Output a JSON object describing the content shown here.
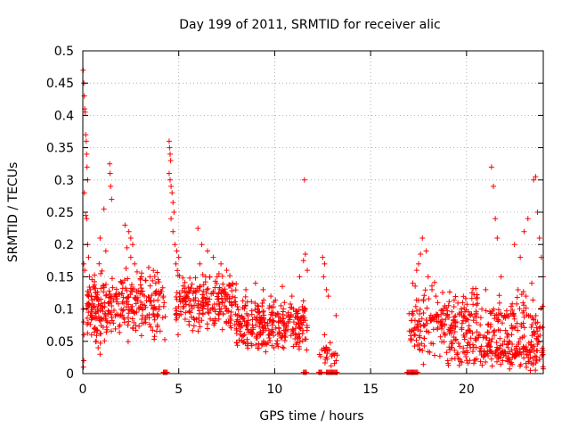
{
  "chart_data": {
    "type": "scatter",
    "title": "Day 199 of 2011, SRMTID for receiver alic",
    "xlabel": "GPS time / hours",
    "ylabel": "SRMTID / TECUs",
    "xlim": [
      0,
      24
    ],
    "ylim": [
      0,
      0.5
    ],
    "xticks": [
      0,
      5,
      10,
      15,
      20
    ],
    "xtick_labels": [
      "0",
      "5",
      "10",
      "15",
      "20"
    ],
    "yticks": [
      0,
      0.05,
      0.1,
      0.15,
      0.2,
      0.25,
      0.3,
      0.35,
      0.4,
      0.45,
      0.5
    ],
    "ytick_labels": [
      "0",
      "0.05",
      "0.1",
      "0.15",
      "0.2",
      "0.25",
      "0.3",
      "0.35",
      "0.4",
      "0.45",
      "0.5"
    ],
    "grid": true,
    "marker": "+",
    "color": "#ff0000",
    "series": [
      {
        "name": "SRMTID",
        "points": [
          [
            0.02,
            0.47
          ],
          [
            0.05,
            0.45
          ],
          [
            0.08,
            0.43
          ],
          [
            0.1,
            0.41
          ],
          [
            0.12,
            0.405
          ],
          [
            0.15,
            0.37
          ],
          [
            0.18,
            0.36
          ],
          [
            0.2,
            0.34
          ],
          [
            0.22,
            0.32
          ],
          [
            0.25,
            0.3
          ],
          [
            0.08,
            0.28
          ],
          [
            0.15,
            0.245
          ],
          [
            0.2,
            0.24
          ],
          [
            0.25,
            0.2
          ],
          [
            0.3,
            0.18
          ],
          [
            0.05,
            0.17
          ],
          [
            0.1,
            0.16
          ],
          [
            0.02,
            0.1
          ],
          [
            0.04,
            0.08
          ],
          [
            0.06,
            0.06
          ],
          [
            0.03,
            0.01
          ],
          [
            0.05,
            0.02
          ],
          [
            0.35,
            0.15
          ],
          [
            0.4,
            0.13
          ],
          [
            0.45,
            0.12
          ],
          [
            0.5,
            0.09
          ],
          [
            0.6,
            0.07
          ],
          [
            0.7,
            0.05
          ],
          [
            0.8,
            0.04
          ],
          [
            0.9,
            0.03
          ],
          [
            1.4,
            0.325
          ],
          [
            1.42,
            0.31
          ],
          [
            1.45,
            0.29
          ],
          [
            1.5,
            0.27
          ],
          [
            1.1,
            0.255
          ],
          [
            0.9,
            0.21
          ],
          [
            1.2,
            0.19
          ],
          [
            2.2,
            0.23
          ],
          [
            2.4,
            0.22
          ],
          [
            2.5,
            0.21
          ],
          [
            2.6,
            0.2
          ],
          [
            2.3,
            0.195
          ],
          [
            2.5,
            0.18
          ],
          [
            2.7,
            0.17
          ],
          [
            3.5,
            0.15
          ],
          [
            3.8,
            0.14
          ],
          [
            4.2,
            0.12
          ],
          [
            4.5,
            0.36
          ],
          [
            4.52,
            0.35
          ],
          [
            4.55,
            0.34
          ],
          [
            4.58,
            0.33
          ],
          [
            4.5,
            0.31
          ],
          [
            4.55,
            0.3
          ],
          [
            4.6,
            0.29
          ],
          [
            4.65,
            0.28
          ],
          [
            4.7,
            0.265
          ],
          [
            4.75,
            0.25
          ],
          [
            4.6,
            0.24
          ],
          [
            4.7,
            0.22
          ],
          [
            4.8,
            0.2
          ],
          [
            4.9,
            0.19
          ],
          [
            5.0,
            0.18
          ],
          [
            4.85,
            0.17
          ],
          [
            6.0,
            0.225
          ],
          [
            6.2,
            0.2
          ],
          [
            6.5,
            0.19
          ],
          [
            6.8,
            0.18
          ],
          [
            7.2,
            0.17
          ],
          [
            7.5,
            0.16
          ],
          [
            6.4,
            0.15
          ],
          [
            6.1,
            0.17
          ],
          [
            7.0,
            0.15
          ],
          [
            7.8,
            0.14
          ],
          [
            8.5,
            0.13
          ],
          [
            9.0,
            0.14
          ],
          [
            9.4,
            0.13
          ],
          [
            9.8,
            0.12
          ],
          [
            10.4,
            0.135
          ],
          [
            10.9,
            0.12
          ],
          [
            11.3,
            0.15
          ],
          [
            11.5,
            0.175
          ],
          [
            11.55,
            0.3
          ],
          [
            11.6,
            0.185
          ],
          [
            11.7,
            0.16
          ],
          [
            11.6,
            0.1
          ],
          [
            12.5,
            0.18
          ],
          [
            12.6,
            0.17
          ],
          [
            12.55,
            0.15
          ],
          [
            12.7,
            0.13
          ],
          [
            12.8,
            0.12
          ],
          [
            13.2,
            0.09
          ],
          [
            12.6,
            0.06
          ],
          [
            12.7,
            0.04
          ],
          [
            13.0,
            0.03
          ],
          [
            13.2,
            0.02
          ],
          [
            17.2,
            0.14
          ],
          [
            17.4,
            0.16
          ],
          [
            17.5,
            0.17
          ],
          [
            17.6,
            0.185
          ],
          [
            17.7,
            0.21
          ],
          [
            17.9,
            0.19
          ],
          [
            18.0,
            0.15
          ],
          [
            18.2,
            0.13
          ],
          [
            18.4,
            0.12
          ],
          [
            18.5,
            0.11
          ],
          [
            18.8,
            0.1
          ],
          [
            19.0,
            0.09
          ],
          [
            19.5,
            0.08
          ],
          [
            19.8,
            0.11
          ],
          [
            20.2,
            0.09
          ],
          [
            20.8,
            0.1
          ],
          [
            21.0,
            0.13
          ],
          [
            21.3,
            0.32
          ],
          [
            21.4,
            0.29
          ],
          [
            21.5,
            0.24
          ],
          [
            21.6,
            0.21
          ],
          [
            21.8,
            0.15
          ],
          [
            22.5,
            0.2
          ],
          [
            22.8,
            0.18
          ],
          [
            23.0,
            0.22
          ],
          [
            23.2,
            0.24
          ],
          [
            23.5,
            0.3
          ],
          [
            23.6,
            0.305
          ],
          [
            23.7,
            0.25
          ],
          [
            23.8,
            0.21
          ],
          [
            23.9,
            0.18
          ],
          [
            24.0,
            0.15
          ],
          [
            23.4,
            0.14
          ],
          [
            23.1,
            0.12
          ]
        ],
        "clusters": [
          {
            "x": [
              0.2,
              4.3
            ],
            "y": [
              0.03,
              0.18
            ],
            "n": 320
          },
          {
            "x": [
              4.8,
              8.0
            ],
            "y": [
              0.05,
              0.17
            ],
            "n": 230
          },
          {
            "x": [
              8.0,
              11.7
            ],
            "y": [
              0.02,
              0.13
            ],
            "n": 300
          },
          {
            "x": [
              12.3,
              13.3
            ],
            "y": [
              0.0,
              0.05
            ],
            "n": 25
          },
          {
            "x": [
              17.0,
              24.0
            ],
            "y": [
              0.0,
              0.15
            ],
            "n": 380
          },
          {
            "x": [
              19.0,
              24.0
            ],
            "y": [
              0.0,
              0.06
            ],
            "n": 160
          }
        ],
        "zero_runs": [
          [
            4.2,
            4.4
          ],
          [
            11.5,
            11.7
          ],
          [
            12.3,
            12.5
          ],
          [
            12.7,
            13.3
          ],
          [
            16.9,
            17.5
          ]
        ]
      }
    ]
  }
}
